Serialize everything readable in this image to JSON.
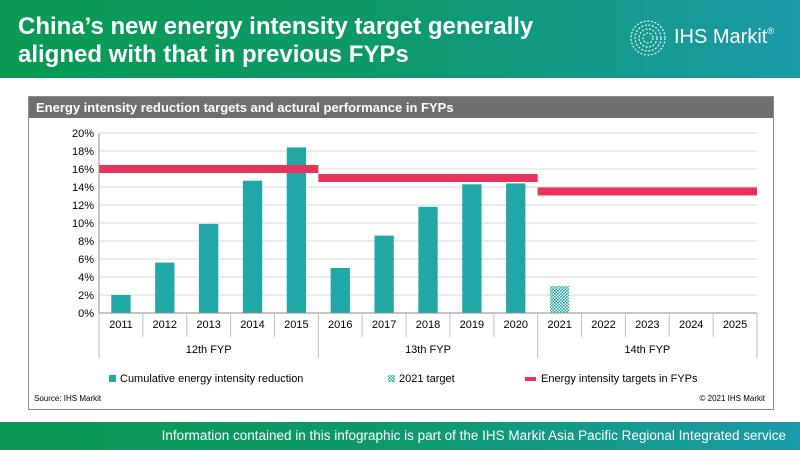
{
  "header": {
    "title": "China’s new energy intensity target generally aligned with that in previous FYPs",
    "logo_text": "IHS Markit",
    "logo_reg": "®"
  },
  "panel": {
    "title": "Energy intensity reduction targets and actural performance in FYPs",
    "source": "Source: IHS Markit",
    "copyright": "© 2021 IHS Markit"
  },
  "footer": {
    "text": "Information contained in this infographic is part of the IHS Markit Asia Pacific Regional Integrated service"
  },
  "colors": {
    "bar": "#21a7a6",
    "target": "#e8335c",
    "grid": "#d9d9d9",
    "header_green": "#0a9a53",
    "header_teal": "#1b9aa8"
  },
  "chart_data": {
    "type": "bar",
    "categories": [
      "2011",
      "2012",
      "2013",
      "2014",
      "2015",
      "2016",
      "2017",
      "2018",
      "2019",
      "2020",
      "2021",
      "2022",
      "2023",
      "2024",
      "2025"
    ],
    "groups": [
      {
        "label": "12th FYP",
        "start": 0,
        "end": 4
      },
      {
        "label": "13th FYP",
        "start": 5,
        "end": 9
      },
      {
        "label": "14th FYP",
        "start": 10,
        "end": 14
      }
    ],
    "series": [
      {
        "name": "Cumulative energy intensity reduction",
        "style": "solid",
        "values": [
          2.0,
          5.6,
          9.9,
          14.7,
          18.4,
          5.0,
          8.6,
          11.8,
          14.3,
          14.4,
          null,
          null,
          null,
          null,
          null
        ]
      },
      {
        "name": "2021 target",
        "style": "hatched",
        "values": [
          null,
          null,
          null,
          null,
          null,
          null,
          null,
          null,
          null,
          null,
          3.0,
          null,
          null,
          null,
          null
        ]
      }
    ],
    "targets": {
      "name": "Energy intensity targets in FYPs",
      "segments": [
        {
          "start": 0,
          "end": 4,
          "value": 16.0
        },
        {
          "start": 5,
          "end": 9,
          "value": 15.0
        },
        {
          "start": 10,
          "end": 14,
          "value": 13.5
        }
      ]
    },
    "yticks": [
      "0%",
      "2%",
      "4%",
      "6%",
      "8%",
      "10%",
      "12%",
      "14%",
      "16%",
      "18%",
      "20%"
    ],
    "ylim": [
      0,
      20
    ],
    "grid": true,
    "legend": "bottom"
  }
}
